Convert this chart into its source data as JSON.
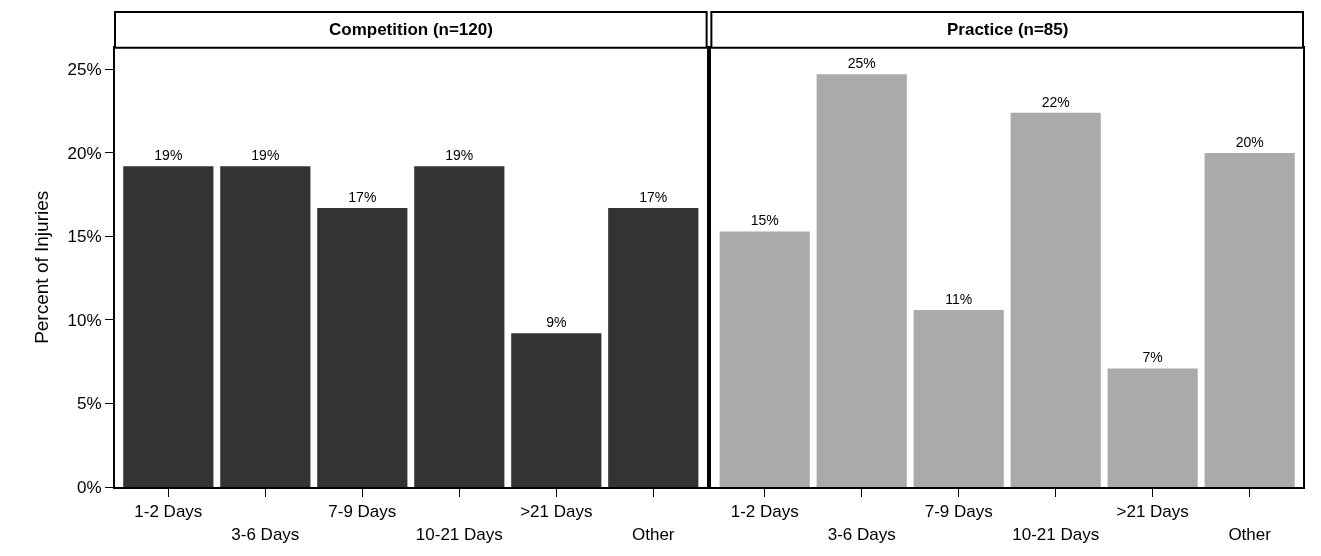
{
  "chart_data": [
    {
      "type": "bar",
      "title": "Competition (n=120)",
      "ylabel": "Percent of Injuries",
      "categories": [
        "1-2 Days",
        "3-6 Days",
        "7-9 Days",
        "10-21 Days",
        ">21 Days",
        "Other"
      ],
      "values": [
        19.2,
        19.2,
        16.7,
        19.2,
        9.2,
        16.7
      ],
      "value_labels": [
        "19%",
        "19%",
        "17%",
        "19%",
        "9%",
        "17%"
      ],
      "color": "#333333",
      "ylim": [
        0,
        26.3
      ],
      "yticks": [
        {
          "value": 0,
          "label": "0%"
        },
        {
          "value": 5,
          "label": "5%"
        },
        {
          "value": 10,
          "label": "10%"
        },
        {
          "value": 15,
          "label": "15%"
        },
        {
          "value": 20,
          "label": "20%"
        },
        {
          "value": 25,
          "label": "25%"
        }
      ]
    },
    {
      "type": "bar",
      "title": "Practice (n=85)",
      "categories": [
        "1-2 Days",
        "3-6 Days",
        "7-9 Days",
        "10-21 Days",
        ">21 Days",
        "Other"
      ],
      "values": [
        15.3,
        24.7,
        10.6,
        22.4,
        7.1,
        20.0
      ],
      "value_labels": [
        "15%",
        "25%",
        "11%",
        "22%",
        "7%",
        "20%"
      ],
      "color": "#aaaaaa",
      "ylim": [
        0,
        26.3
      ],
      "tick_labels": "x"
    }
  ]
}
